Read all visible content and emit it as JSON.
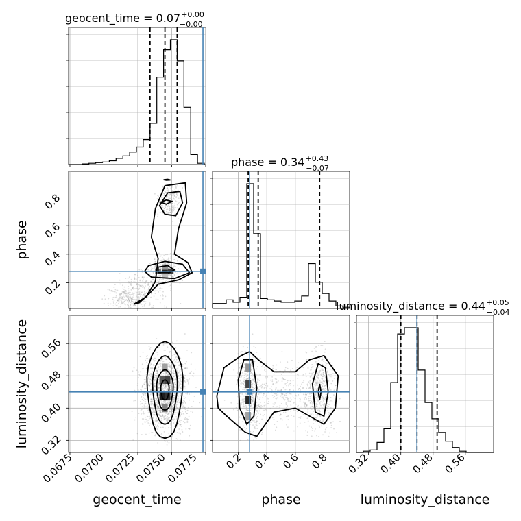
{
  "chart_data": {
    "type": "corner",
    "parameters": [
      "geocent_time",
      "phase",
      "luminosity_distance"
    ],
    "truths": {
      "geocent_time": 0.0773,
      "phase": 0.28,
      "luminosity_distance": 0.44
    },
    "titles": [
      {
        "param": "geocent_time",
        "text": "geocent_time = 0.07",
        "sup": "+0.00",
        "sub": "−0.00"
      },
      {
        "param": "phase",
        "text": "phase = 0.34",
        "sup": "+0.43",
        "sub": "−0.07"
      },
      {
        "param": "luminosity_distance",
        "text": "luminosity_distance = 0.44",
        "sup": "+0.05",
        "sub": "−0.04"
      }
    ],
    "axis_labels": {
      "x": [
        "geocent_time",
        "phase",
        "luminosity_distance"
      ],
      "y": [
        "phase",
        "luminosity_distance"
      ]
    },
    "ticks": {
      "geocent_time": [
        "0.0675",
        "0.0700",
        "0.0725",
        "0.0750",
        "0.0775"
      ],
      "phase": [
        "0.2",
        "0.4",
        "0.6",
        "0.8"
      ],
      "luminosity_distance": [
        "0.32",
        "0.40",
        "0.48",
        "0.56"
      ]
    },
    "ranges": {
      "geocent_time": [
        0.0674,
        0.0775
      ],
      "phase": [
        0.02,
        0.98
      ],
      "luminosity_distance": [
        0.29,
        0.63
      ]
    },
    "quantiles": {
      "geocent_time": [
        0.0734,
        0.0745,
        0.0754
      ],
      "phase": [
        0.27,
        0.34,
        0.77
      ],
      "luminosity_distance": [
        0.4,
        0.44,
        0.49
      ]
    },
    "histograms": {
      "geocent_time": {
        "edges_start": 0.0674,
        "bin_width": 0.0005,
        "counts": [
          0,
          0,
          0.5,
          1,
          1.5,
          2,
          3,
          5,
          7,
          10,
          14,
          20,
          33,
          70,
          92,
          100,
          83,
          46,
          8,
          1
        ]
      },
      "phase": {
        "edges_start": 0.02,
        "bin_width": 0.048,
        "counts": [
          4,
          4,
          7,
          5,
          9,
          100,
          60,
          8,
          7,
          6,
          5,
          5,
          6,
          10,
          36,
          21,
          12,
          6,
          2,
          1
        ]
      },
      "luminosity_distance": {
        "edges_start": 0.29,
        "bin_width": 0.017,
        "counts": [
          0,
          1,
          2,
          8,
          19,
          56,
          95,
          100,
          100,
          66,
          40,
          27,
          16,
          9,
          4,
          1,
          0,
          0,
          0,
          0
        ]
      }
    },
    "grid": true
  }
}
